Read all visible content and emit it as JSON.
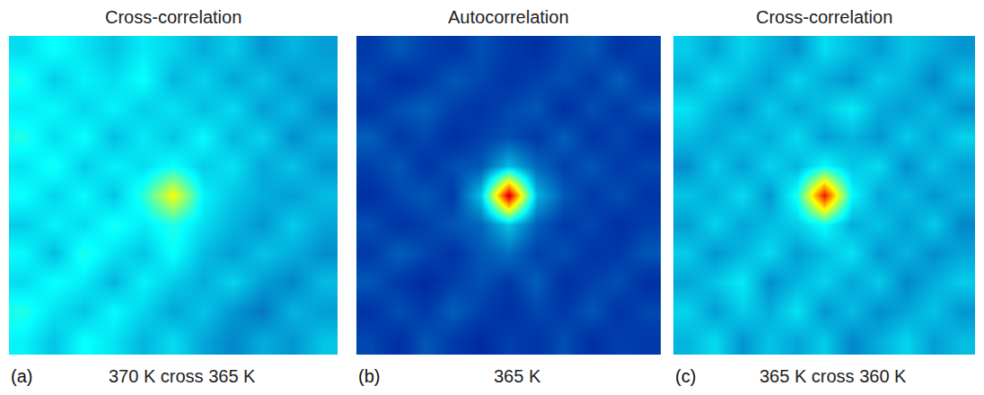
{
  "chart_data": [
    {
      "type": "heatmap",
      "title": "Cross-correlation",
      "panel": "(a)",
      "caption": "370 K cross 365 K",
      "zlim": [
        0,
        1
      ],
      "tick_labels": false,
      "z": [
        [
          0.36,
          0.3,
          0.38,
          0.34,
          0.28,
          0.33,
          0.26,
          0.22,
          0.27,
          0.24,
          0.3
        ],
        [
          0.4,
          0.34,
          0.3,
          0.37,
          0.32,
          0.26,
          0.3,
          0.24,
          0.2,
          0.28,
          0.25
        ],
        [
          0.33,
          0.38,
          0.35,
          0.28,
          0.36,
          0.31,
          0.27,
          0.32,
          0.25,
          0.22,
          0.29
        ],
        [
          0.37,
          0.29,
          0.4,
          0.34,
          0.3,
          0.38,
          0.29,
          0.25,
          0.3,
          0.27,
          0.23
        ],
        [
          0.31,
          0.36,
          0.33,
          0.39,
          0.35,
          0.4,
          0.33,
          0.28,
          0.24,
          0.31,
          0.26
        ],
        [
          0.38,
          0.32,
          0.37,
          0.3,
          0.41,
          0.62,
          0.36,
          0.3,
          0.27,
          0.25,
          0.29
        ],
        [
          0.34,
          0.39,
          0.31,
          0.36,
          0.33,
          0.38,
          0.31,
          0.34,
          0.26,
          0.3,
          0.24
        ],
        [
          0.4,
          0.33,
          0.38,
          0.29,
          0.35,
          0.3,
          0.37,
          0.28,
          0.32,
          0.23,
          0.28
        ],
        [
          0.35,
          0.37,
          0.32,
          0.36,
          0.31,
          0.34,
          0.29,
          0.33,
          0.25,
          0.29,
          0.22
        ],
        [
          0.39,
          0.31,
          0.36,
          0.33,
          0.38,
          0.28,
          0.32,
          0.26,
          0.3,
          0.24,
          0.27
        ],
        [
          0.33,
          0.38,
          0.34,
          0.3,
          0.35,
          0.32,
          0.27,
          0.31,
          0.24,
          0.28,
          0.25
        ]
      ]
    },
    {
      "type": "heatmap",
      "title": "Autocorrelation",
      "panel": "(b)",
      "caption": "365 K",
      "zlim": [
        0,
        1
      ],
      "tick_labels": false,
      "z": [
        [
          0.14,
          0.1,
          0.16,
          0.12,
          0.09,
          0.13,
          0.11,
          0.15,
          0.1,
          0.13,
          0.12
        ],
        [
          0.11,
          0.15,
          0.12,
          0.17,
          0.13,
          0.1,
          0.14,
          0.12,
          0.16,
          0.11,
          0.14
        ],
        [
          0.16,
          0.12,
          0.09,
          0.13,
          0.15,
          0.12,
          0.17,
          0.1,
          0.13,
          0.15,
          0.1
        ],
        [
          0.12,
          0.17,
          0.14,
          0.11,
          0.16,
          0.19,
          0.13,
          0.15,
          0.11,
          0.12,
          0.16
        ],
        [
          0.15,
          0.11,
          0.13,
          0.16,
          0.18,
          0.3,
          0.17,
          0.12,
          0.14,
          0.1,
          0.13
        ],
        [
          0.1,
          0.14,
          0.16,
          0.12,
          0.3,
          0.92,
          0.28,
          0.16,
          0.12,
          0.15,
          0.11
        ],
        [
          0.13,
          0.16,
          0.11,
          0.15,
          0.16,
          0.29,
          0.18,
          0.13,
          0.16,
          0.12,
          0.14
        ],
        [
          0.17,
          0.12,
          0.14,
          0.1,
          0.13,
          0.15,
          0.12,
          0.17,
          0.11,
          0.14,
          0.1
        ],
        [
          0.11,
          0.15,
          0.17,
          0.13,
          0.11,
          0.14,
          0.16,
          0.1,
          0.15,
          0.12,
          0.16
        ],
        [
          0.14,
          0.1,
          0.12,
          0.16,
          0.14,
          0.11,
          0.13,
          0.15,
          0.12,
          0.17,
          0.11
        ],
        [
          0.12,
          0.16,
          0.13,
          0.11,
          0.15,
          0.12,
          0.1,
          0.14,
          0.16,
          0.11,
          0.13
        ]
      ]
    },
    {
      "type": "heatmap",
      "title": "Cross-correlation",
      "panel": "(c)",
      "caption": "365 K cross 360 K",
      "zlim": [
        0,
        1
      ],
      "tick_labels": false,
      "z": [
        [
          0.28,
          0.33,
          0.24,
          0.3,
          0.26,
          0.31,
          0.22,
          0.27,
          0.32,
          0.25,
          0.29
        ],
        [
          0.32,
          0.25,
          0.31,
          0.27,
          0.34,
          0.24,
          0.29,
          0.23,
          0.26,
          0.3,
          0.24
        ],
        [
          0.26,
          0.3,
          0.35,
          0.23,
          0.28,
          0.32,
          0.26,
          0.31,
          0.22,
          0.27,
          0.31
        ],
        [
          0.31,
          0.24,
          0.28,
          0.33,
          0.25,
          0.29,
          0.34,
          0.24,
          0.28,
          0.23,
          0.26
        ],
        [
          0.25,
          0.32,
          0.26,
          0.29,
          0.31,
          0.38,
          0.27,
          0.3,
          0.25,
          0.31,
          0.22
        ],
        [
          0.3,
          0.27,
          0.33,
          0.24,
          0.39,
          0.86,
          0.37,
          0.26,
          0.29,
          0.24,
          0.28
        ],
        [
          0.23,
          0.31,
          0.25,
          0.32,
          0.28,
          0.37,
          0.3,
          0.33,
          0.23,
          0.3,
          0.25
        ],
        [
          0.29,
          0.26,
          0.3,
          0.27,
          0.33,
          0.25,
          0.28,
          0.24,
          0.31,
          0.26,
          0.32
        ],
        [
          0.34,
          0.28,
          0.24,
          0.31,
          0.26,
          0.3,
          0.35,
          0.27,
          0.25,
          0.29,
          0.23
        ],
        [
          0.27,
          0.33,
          0.29,
          0.25,
          0.32,
          0.27,
          0.24,
          0.31,
          0.28,
          0.22,
          0.3
        ],
        [
          0.31,
          0.26,
          0.32,
          0.28,
          0.24,
          0.33,
          0.29,
          0.25,
          0.3,
          0.27,
          0.24
        ]
      ]
    }
  ]
}
